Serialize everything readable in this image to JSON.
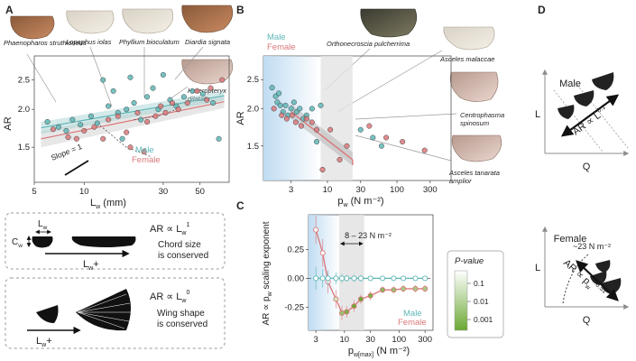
{
  "colors": {
    "male": "#5fb6b6",
    "female": "#d9787a",
    "sig_high": "#6aa832",
    "sig_low": "#ffffff",
    "shade_blue": "#cfe6f5",
    "shade_grey": "#e3e3e3"
  },
  "panel_labels": {
    "a": "A",
    "b": "B",
    "c": "C",
    "d": "D"
  },
  "panel_a": {
    "species_labels": [
      "Phaenopharos struthioneus",
      "Lopaphus iolas",
      "Phyllium bioculatum",
      "Diardia signata",
      "Heteropteryx dilatata"
    ],
    "slope_label": "Slope = 1",
    "legend": {
      "male": "Male",
      "female": "Female"
    }
  },
  "panel_b": {
    "species_labels": [
      "Orthonecroscia pulcherrima",
      "Asceles malaccae",
      "Centrophasma spinosum",
      "Asceles tanarata amplior"
    ],
    "legend": {
      "male": "Male",
      "female": "Female"
    }
  },
  "panel_c": {
    "range_label": "8 – 23 N m⁻²",
    "colorbar": {
      "title": "P-value",
      "ticks": [
        "0.1",
        "0.01",
        "0.001"
      ]
    },
    "legend": {
      "male": "Male",
      "female": "Female"
    }
  },
  "schematics": {
    "box1": {
      "chord_label": "C",
      "chord_sub": "w",
      "length_label": "L",
      "length_sub": "w",
      "arrow_label": "L",
      "arrow_sub": "w",
      "plus": "+",
      "eq_prefix": "AR ∝ L",
      "eq_sub": "w",
      "eq_sup": "1",
      "caption": [
        "Chord size",
        "is conserved"
      ]
    },
    "box2": {
      "arrow_label": "L",
      "arrow_sub": "w",
      "plus": "+",
      "eq_prefix": "AR ∝ L",
      "eq_sub": "w",
      "eq_sup": "0",
      "caption": [
        "Wing shape",
        "is conserved"
      ]
    }
  },
  "panel_d": {
    "male": {
      "title": "Male",
      "y_axis": "L",
      "x_axis": "Q",
      "relation": "AR ∝ L",
      "rel_sup": "0.1"
    },
    "female": {
      "title": "Female",
      "y_axis": "L",
      "x_axis": "Q",
      "relation": "AR ∝ p",
      "rel_sub": "w",
      "rel_sup": "-0.51",
      "threshold": "~23 N m⁻²"
    }
  },
  "chart_data": [
    {
      "id": "A",
      "type": "scatter",
      "xlabel": "L",
      "xlabel_sub": "w",
      "xlabel_unit": "(mm)",
      "ylabel": "AR",
      "xscale": "log",
      "yscale": "log",
      "xlim": [
        5,
        75
      ],
      "ylim": [
        1.15,
        3.0
      ],
      "xticks": [
        5,
        10,
        30,
        50
      ],
      "yticks": [
        1.5,
        2.0,
        2.5
      ],
      "series": [
        {
          "name": "Male",
          "points": [
            [
              6,
              1.82
            ],
            [
              7,
              1.75
            ],
            [
              7.8,
              1.7
            ],
            [
              8.5,
              1.85
            ],
            [
              9.5,
              1.78
            ],
            [
              11,
              1.9
            ],
            [
              12,
              1.8
            ],
            [
              13,
              2.5
            ],
            [
              14,
              2.05
            ],
            [
              15,
              2.3
            ],
            [
              16,
              1.95
            ],
            [
              17,
              1.6
            ],
            [
              18,
              2.0
            ],
            [
              19,
              2.55
            ],
            [
              20,
              2.1
            ],
            [
              22,
              1.85
            ],
            [
              24,
              2.2
            ],
            [
              26,
              2.35
            ],
            [
              28,
              2.0
            ],
            [
              30,
              2.6
            ],
            [
              33,
              2.15
            ],
            [
              36,
              2.05
            ],
            [
              40,
              2.2
            ],
            [
              45,
              2.3
            ],
            [
              52,
              2.25
            ],
            [
              60,
              2.1
            ],
            [
              65,
              1.6
            ]
          ]
        },
        {
          "name": "Female",
          "points": [
            [
              6.5,
              1.72
            ],
            [
              8,
              1.62
            ],
            [
              9,
              1.6
            ],
            [
              10,
              1.7
            ],
            [
              11.5,
              1.75
            ],
            [
              13,
              1.6
            ],
            [
              14,
              1.85
            ],
            [
              16,
              1.9
            ],
            [
              18,
              1.68
            ],
            [
              19,
              1.5
            ],
            [
              21,
              1.95
            ],
            [
              23,
              1.45
            ],
            [
              24,
              1.82
            ],
            [
              27,
              1.9
            ],
            [
              29,
              2.05
            ],
            [
              31,
              1.95
            ],
            [
              34,
              2.1
            ],
            [
              37,
              2.0
            ],
            [
              42,
              2.1
            ],
            [
              48,
              2.3
            ],
            [
              55,
              2.15
            ],
            [
              58,
              2.35
            ],
            [
              68,
              2.5
            ]
          ]
        }
      ],
      "fit": {
        "male": [
          [
            5.5,
            1.74
          ],
          [
            70,
            2.22
          ]
        ],
        "female": [
          [
            5.5,
            1.6
          ],
          [
            70,
            2.12
          ]
        ]
      }
    },
    {
      "id": "B",
      "type": "scatter",
      "xlabel": "p",
      "xlabel_sub": "w",
      "xlabel_unit": "(N m⁻²)",
      "ylabel": "AR",
      "xscale": "log",
      "yscale": "log",
      "xlim": [
        1.2,
        600
      ],
      "ylim": [
        1.15,
        3.0
      ],
      "xticks": [
        3,
        10,
        30,
        100,
        300
      ],
      "yticks": [
        1.5,
        2.0,
        2.5
      ],
      "series": [
        {
          "name": "Male",
          "points": [
            [
              1.6,
              2.35
            ],
            [
              1.8,
              2.2
            ],
            [
              1.9,
              2.1
            ],
            [
              2.0,
              2.25
            ],
            [
              2.1,
              2.05
            ],
            [
              2.3,
              1.95
            ],
            [
              2.5,
              2.05
            ],
            [
              2.7,
              1.9
            ],
            [
              3.0,
              2.0
            ],
            [
              3.3,
              2.1
            ],
            [
              3.6,
              1.95
            ],
            [
              4.0,
              2.0
            ],
            [
              4.5,
              1.85
            ],
            [
              5,
              1.9
            ],
            [
              6,
              2.0
            ],
            [
              7,
              1.55
            ],
            [
              8,
              2.05
            ],
            [
              30,
              1.7
            ],
            [
              45,
              1.6
            ],
            [
              60,
              1.5
            ]
          ]
        },
        {
          "name": "Female",
          "points": [
            [
              1.7,
              2.0
            ],
            [
              2.2,
              1.9
            ],
            [
              2.6,
              1.85
            ],
            [
              3.1,
              1.9
            ],
            [
              3.5,
              1.8
            ],
            [
              4.2,
              1.75
            ],
            [
              5,
              1.85
            ],
            [
              6,
              1.8
            ],
            [
              7,
              1.7
            ],
            [
              8.5,
              1.25
            ],
            [
              11,
              1.7
            ],
            [
              15,
              1.35
            ],
            [
              19,
              1.5
            ],
            [
              40,
              1.75
            ],
            [
              70,
              1.6
            ],
            [
              120,
              1.55
            ],
            [
              250,
              1.45
            ]
          ]
        }
      ],
      "fit": {
        "female": [
          [
            3,
            1.95
          ],
          [
            23,
            1.35
          ]
        ]
      }
    },
    {
      "id": "C",
      "type": "line",
      "xlabel": "p",
      "xlabel_sub": "w[max]",
      "xlabel_unit": "(N m⁻²)",
      "ylabel": "AR ∝ p",
      "ylabel_sub": "w",
      "ylabel_rest": "scaling exponent",
      "xscale": "log",
      "xlim": [
        2.2,
        420
      ],
      "ylim": [
        -0.45,
        0.55
      ],
      "xticks": [
        3,
        10,
        30,
        100,
        300
      ],
      "yticks": [
        -0.25,
        0.0,
        0.25
      ],
      "x": [
        3,
        4,
        5,
        7,
        9,
        11,
        15,
        20,
        30,
        50,
        80,
        120,
        200,
        300
      ],
      "series": [
        {
          "name": "Male",
          "values": [
            0.0,
            0.0,
            0.0,
            0.0,
            0.0,
            0.0,
            0.0,
            0.0,
            0.0,
            0.0,
            0.0,
            0.0,
            0.0,
            0.0
          ]
        },
        {
          "name": "Female",
          "values": [
            0.42,
            0.22,
            -0.03,
            -0.18,
            -0.3,
            -0.29,
            -0.24,
            -0.18,
            -0.15,
            -0.1,
            -0.1,
            -0.09,
            -0.09,
            -0.09
          ]
        }
      ],
      "female_pvalue_level": [
        0,
        0,
        0,
        0.3,
        0.7,
        0.9,
        1.0,
        1.0,
        0.9,
        0.8,
        0.7,
        0.6,
        0.6,
        0.6
      ],
      "female_err": [
        0.12,
        0.12,
        0.1,
        0.08,
        0.06,
        0.05,
        0.05,
        0.04,
        0.04,
        0.03,
        0.03,
        0.03,
        0.03,
        0.03
      ],
      "male_err": [
        0.1,
        0.08,
        0.06,
        0.05,
        0.04,
        0.03,
        0.03,
        0.03,
        0.02,
        0.02,
        0.02,
        0.02,
        0.02,
        0.02
      ],
      "highlight_range": [
        8,
        23
      ]
    }
  ]
}
